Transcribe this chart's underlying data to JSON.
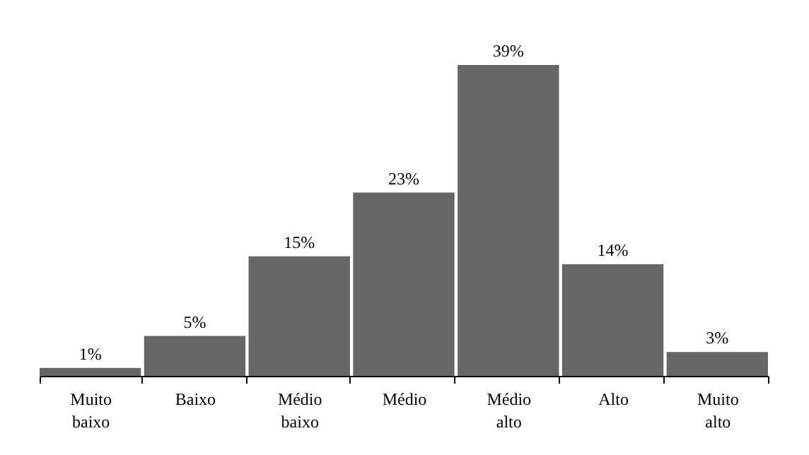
{
  "chart_data": {
    "type": "bar",
    "categories": [
      "Muito baixo",
      "Baixo",
      "Médio baixo",
      "Médio",
      "Médio alto",
      "Alto",
      "Muito alto"
    ],
    "values": [
      1,
      5,
      15,
      23,
      39,
      14,
      3
    ],
    "value_labels": [
      "1%",
      "5%",
      "15%",
      "23%",
      "39%",
      "14%",
      "3%"
    ],
    "color": "#666666",
    "tick_labels": "x",
    "grid": false
  }
}
